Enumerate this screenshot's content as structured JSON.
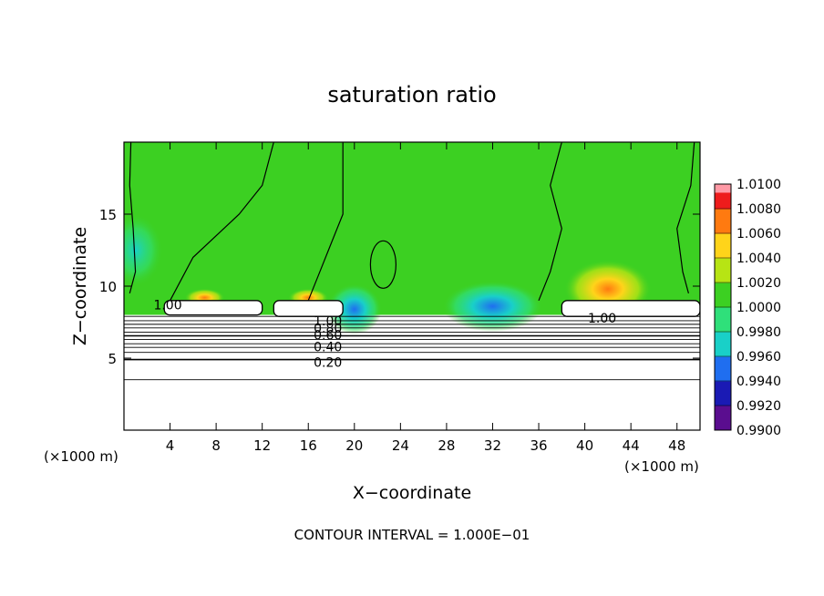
{
  "chart_data": {
    "type": "heatmap",
    "title": "saturation ratio",
    "xlabel": "X−coordinate",
    "ylabel": "Z−coordinate",
    "x_unit_left": "(×1000 m)",
    "x_unit_right": "(×1000 m)",
    "xlim": [
      0,
      50
    ],
    "ylim": [
      0,
      20
    ],
    "xticks": [
      4,
      8,
      12,
      16,
      20,
      24,
      28,
      32,
      36,
      40,
      44,
      48
    ],
    "yticks": [
      5,
      10,
      15
    ],
    "footer": "CONTOUR INTERVAL = 1.000E−01",
    "colorbar": {
      "ticks": [
        "1.0100",
        "1.0080",
        "1.0060",
        "1.0040",
        "1.0020",
        "1.0000",
        "0.9980",
        "0.9960",
        "0.9940",
        "0.9920",
        "0.9900"
      ],
      "range": [
        0.99,
        1.01
      ],
      "colors": {
        "0.9900": "#5a0d8f",
        "0.9920": "#1a1ab4",
        "0.9940": "#1f6ef0",
        "0.9960": "#19d0c8",
        "0.9980": "#2fe07a",
        "1.0000": "#3cd022",
        "1.0020": "#b7e414",
        "1.0040": "#ffd41a",
        "1.0060": "#ff7a10",
        "1.0080": "#ee1c1c",
        "1.0100": "#ff9aa6"
      }
    },
    "contour_labels": [
      {
        "text": "1.00",
        "x": 3.8,
        "z": 8.7
      },
      {
        "text": "1.00",
        "x": 41.5,
        "z": 7.8
      },
      {
        "text": "1.00",
        "x": 17.7,
        "z": 7.6
      },
      {
        "text": "0.80",
        "x": 17.7,
        "z": 7.1
      },
      {
        "text": "0.60",
        "x": 17.7,
        "z": 6.6
      },
      {
        "text": "0.40",
        "x": 17.7,
        "z": 5.8
      },
      {
        "text": "0.20",
        "x": 17.7,
        "z": 4.7
      }
    ],
    "features": {
      "green_region_base_z": 8.0,
      "subsaturated_below_z": 8.0,
      "cloud_layers": [
        {
          "x0": 3.5,
          "x1": 12.0,
          "z0": 8.0,
          "z1": 9.0
        },
        {
          "x0": 13.0,
          "x1": 19.0,
          "z0": 7.9,
          "z1": 9.0
        },
        {
          "x0": 38.0,
          "x1": 50.0,
          "z0": 7.9,
          "z1": 9.0
        }
      ],
      "warm_spots": [
        {
          "x": 42,
          "z": 9.8,
          "value": 1.0055
        },
        {
          "x": 7,
          "z": 9.2,
          "value": 1.003
        },
        {
          "x": 16,
          "z": 9.2,
          "value": 1.003
        }
      ],
      "cool_spots": [
        {
          "x": 32,
          "z": 8.6,
          "value": 0.9945
        },
        {
          "x": 20,
          "z": 8.4,
          "value": 0.995
        },
        {
          "x": 1,
          "z": 12.5,
          "value": 0.9975
        }
      ]
    }
  }
}
